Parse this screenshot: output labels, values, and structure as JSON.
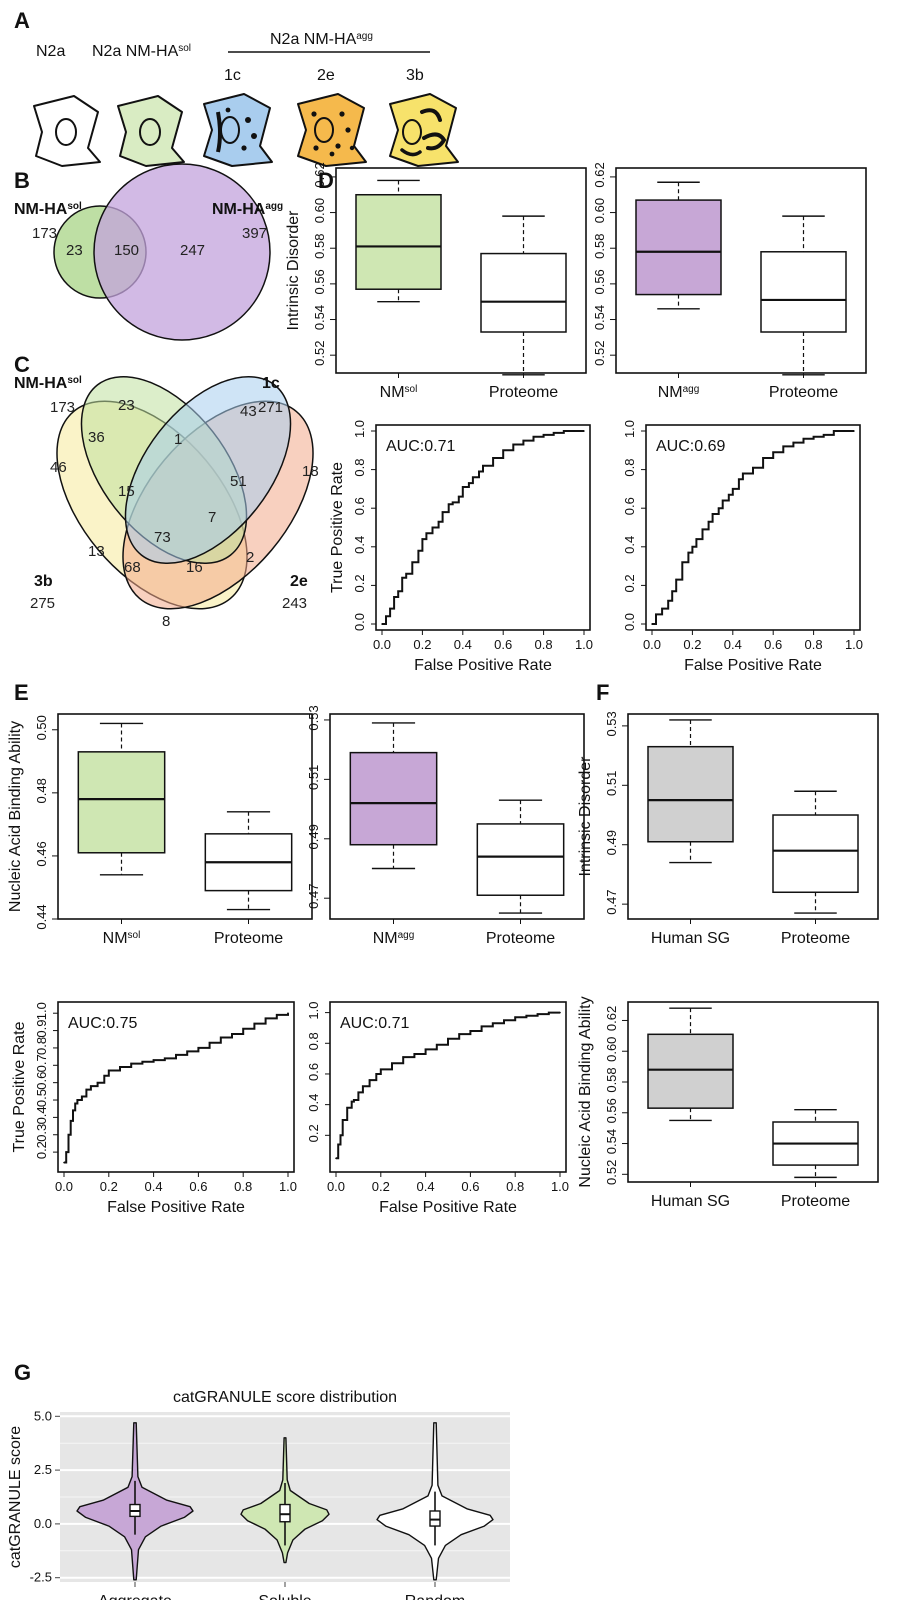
{
  "panels": {
    "A": "A",
    "B": "B",
    "C": "C",
    "D": "D",
    "E": "E",
    "F": "F",
    "G": "G"
  },
  "panelA": {
    "labels": {
      "n2a": "N2a",
      "sol_base": "N2a NM-HA",
      "sol_sup": "sol",
      "agg_base": "N2a NM-HA",
      "agg_sup": "agg"
    },
    "clones": [
      "1c",
      "2e",
      "3b"
    ],
    "cells": [
      {
        "name": "N2a",
        "fill": "#ffffff"
      },
      {
        "name": "NM-HA sol",
        "fill": "#d9ecc3"
      },
      {
        "name": "1c",
        "fill": "#a9cdee"
      },
      {
        "name": "2e",
        "fill": "#f5b94c"
      },
      {
        "name": "3b",
        "fill": "#f7e26b"
      }
    ]
  },
  "panelB": {
    "left": {
      "name": "NM-HA",
      "sup": "sol",
      "total": "173"
    },
    "right": {
      "name": "NM-HA",
      "sup": "agg",
      "total": "397"
    },
    "regions": {
      "only_left": "23",
      "both": "150",
      "only_right": "247"
    },
    "colors": {
      "left": "#b7dc9a",
      "right": "#c3a3dc"
    }
  },
  "panelC": {
    "sets": [
      {
        "name": "NM-HA",
        "sup": "sol",
        "total": "173",
        "color": "#bfe09f"
      },
      {
        "name": "1c",
        "sup": "",
        "total": "271",
        "color": "#a7cdee"
      },
      {
        "name": "3b",
        "sup": "",
        "total": "275",
        "color": "#f6e99a"
      },
      {
        "name": "2e",
        "sup": "",
        "total": "243",
        "color": "#f3a98a"
      }
    ],
    "regions": [
      "23",
      "43",
      "46",
      "18",
      "36",
      "1",
      "51",
      "15",
      "7",
      "73",
      "13",
      "2",
      "68",
      "16",
      "8"
    ]
  },
  "colors": {
    "sol": "#cfe7b3",
    "agg": "#c7a7d6",
    "sg": "#d0d0d0",
    "white": "#ffffff"
  },
  "chart_data": [
    {
      "id": "D-box-sol",
      "type": "box",
      "ylabel": "Intrinsic Disorder",
      "ylim": [
        0.51,
        0.625
      ],
      "yticks": [
        "0.52",
        "0.54",
        "0.56",
        "0.58",
        "0.60",
        "0.62"
      ],
      "categories": [
        "NM",
        "Proteome"
      ],
      "category_sup": [
        "sol",
        ""
      ],
      "boxes": [
        {
          "min": 0.55,
          "q1": 0.557,
          "median": 0.581,
          "q3": 0.61,
          "max": 0.618
        },
        {
          "min": 0.509,
          "q1": 0.533,
          "median": 0.55,
          "q3": 0.577,
          "max": 0.598
        }
      ]
    },
    {
      "id": "D-box-agg",
      "type": "box",
      "ylabel": "",
      "ylim": [
        0.51,
        0.625
      ],
      "yticks": [
        "0.52",
        "0.54",
        "0.56",
        "0.58",
        "0.60",
        "0.62"
      ],
      "categories": [
        "NM",
        "Proteome"
      ],
      "category_sup": [
        "agg",
        ""
      ],
      "boxes": [
        {
          "min": 0.546,
          "q1": 0.554,
          "median": 0.578,
          "q3": 0.607,
          "max": 0.617
        },
        {
          "min": 0.509,
          "q1": 0.533,
          "median": 0.551,
          "q3": 0.578,
          "max": 0.598
        }
      ]
    },
    {
      "id": "D-roc-sol",
      "type": "line",
      "annotation": "AUC:0.71",
      "xlabel": "False Positive Rate",
      "ylabel": "True Positive Rate",
      "xlim": [
        0,
        1
      ],
      "ylim": [
        0,
        1
      ],
      "xticks": [
        "0.0",
        "0.2",
        "0.4",
        "0.6",
        "0.8",
        "1.0"
      ],
      "yticks": [
        "0.0",
        "0.2",
        "0.4",
        "0.6",
        "0.8",
        "1.0"
      ],
      "x": [
        0,
        0.02,
        0.04,
        0.06,
        0.08,
        0.1,
        0.12,
        0.15,
        0.18,
        0.2,
        0.22,
        0.25,
        0.28,
        0.3,
        0.33,
        0.35,
        0.38,
        0.4,
        0.43,
        0.45,
        0.48,
        0.5,
        0.55,
        0.6,
        0.65,
        0.7,
        0.75,
        0.8,
        0.85,
        0.9,
        0.95,
        1.0
      ],
      "y": [
        0,
        0.04,
        0.08,
        0.14,
        0.17,
        0.24,
        0.26,
        0.32,
        0.38,
        0.44,
        0.47,
        0.5,
        0.53,
        0.58,
        0.62,
        0.63,
        0.66,
        0.71,
        0.73,
        0.76,
        0.79,
        0.82,
        0.86,
        0.9,
        0.93,
        0.95,
        0.97,
        0.98,
        0.99,
        1.0,
        1.0,
        1.0
      ]
    },
    {
      "id": "D-roc-agg",
      "type": "line",
      "annotation": "AUC:0.69",
      "xlabel": "False Positive Rate",
      "ylabel": "",
      "xlim": [
        0,
        1
      ],
      "ylim": [
        0,
        1
      ],
      "xticks": [
        "0.0",
        "0.2",
        "0.4",
        "0.6",
        "0.8",
        "1.0"
      ],
      "yticks": [
        "0.0",
        "0.2",
        "0.4",
        "0.6",
        "0.8",
        "1.0"
      ],
      "x": [
        0,
        0.02,
        0.05,
        0.08,
        0.1,
        0.12,
        0.15,
        0.18,
        0.2,
        0.22,
        0.25,
        0.28,
        0.3,
        0.33,
        0.35,
        0.38,
        0.4,
        0.43,
        0.45,
        0.5,
        0.55,
        0.6,
        0.65,
        0.7,
        0.75,
        0.8,
        0.85,
        0.9,
        0.95,
        1.0
      ],
      "y": [
        0,
        0.05,
        0.08,
        0.12,
        0.17,
        0.23,
        0.32,
        0.37,
        0.4,
        0.44,
        0.49,
        0.53,
        0.57,
        0.6,
        0.64,
        0.67,
        0.7,
        0.75,
        0.78,
        0.81,
        0.86,
        0.89,
        0.92,
        0.94,
        0.96,
        0.97,
        0.98,
        1.0,
        1.0,
        1.0
      ]
    },
    {
      "id": "E-box-sol",
      "type": "box",
      "ylabel": "Nucleic Acid Binding Ability",
      "ylim": [
        0.44,
        0.505
      ],
      "yticks": [
        "0.44",
        "0.46",
        "0.48",
        "0.50"
      ],
      "categories": [
        "NM",
        "Proteome"
      ],
      "category_sup": [
        "sol",
        ""
      ],
      "boxes": [
        {
          "min": 0.454,
          "q1": 0.461,
          "median": 0.478,
          "q3": 0.493,
          "max": 0.502
        },
        {
          "min": 0.443,
          "q1": 0.449,
          "median": 0.458,
          "q3": 0.467,
          "max": 0.474
        }
      ]
    },
    {
      "id": "E-box-agg",
      "type": "box",
      "ylabel": "",
      "ylim": [
        0.463,
        0.532
      ],
      "yticks": [
        "0.47",
        "0.49",
        "0.51",
        "0.53"
      ],
      "categories": [
        "NM",
        "Proteome"
      ],
      "category_sup": [
        "agg",
        ""
      ],
      "boxes": [
        {
          "min": 0.48,
          "q1": 0.488,
          "median": 0.502,
          "q3": 0.519,
          "max": 0.529
        },
        {
          "min": 0.465,
          "q1": 0.471,
          "median": 0.484,
          "q3": 0.495,
          "max": 0.503
        }
      ]
    },
    {
      "id": "E-roc-sol",
      "type": "line",
      "annotation": "AUC:0.75",
      "xlabel": "False Positive Rate",
      "ylabel": "True Positive Rate",
      "xlim": [
        0,
        1
      ],
      "ylim": [
        0.12,
        1.03
      ],
      "xticks": [
        "0.0",
        "0.2",
        "0.4",
        "0.6",
        "0.8",
        "1.0"
      ],
      "yticks": [
        "0.2",
        "0.3",
        "0.4",
        "0.5",
        "0.6",
        "0.7",
        "0.8",
        "0.9",
        "1.0"
      ],
      "x": [
        0,
        0.01,
        0.02,
        0.03,
        0.04,
        0.05,
        0.06,
        0.08,
        0.1,
        0.12,
        0.15,
        0.18,
        0.2,
        0.25,
        0.3,
        0.35,
        0.4,
        0.45,
        0.5,
        0.55,
        0.6,
        0.65,
        0.7,
        0.75,
        0.8,
        0.85,
        0.9,
        0.95,
        1.0
      ],
      "y": [
        0.14,
        0.2,
        0.3,
        0.38,
        0.44,
        0.48,
        0.5,
        0.52,
        0.56,
        0.58,
        0.6,
        0.64,
        0.67,
        0.69,
        0.71,
        0.72,
        0.73,
        0.74,
        0.76,
        0.78,
        0.8,
        0.83,
        0.86,
        0.88,
        0.91,
        0.94,
        0.97,
        0.99,
        1.0
      ]
    },
    {
      "id": "E-roc-agg",
      "type": "line",
      "annotation": "AUC:0.71",
      "xlabel": "False Positive Rate",
      "ylabel": "",
      "xlim": [
        0,
        1
      ],
      "ylim": [
        0.0,
        1.03
      ],
      "xticks": [
        "0.0",
        "0.2",
        "0.4",
        "0.6",
        "0.8",
        "1.0"
      ],
      "yticks": [
        "0.2",
        "0.4",
        "0.6",
        "0.8",
        "1.0"
      ],
      "x": [
        0,
        0.01,
        0.02,
        0.03,
        0.05,
        0.07,
        0.08,
        0.1,
        0.12,
        0.15,
        0.18,
        0.2,
        0.25,
        0.3,
        0.35,
        0.4,
        0.45,
        0.5,
        0.55,
        0.6,
        0.65,
        0.7,
        0.75,
        0.8,
        0.85,
        0.9,
        0.95,
        1.0
      ],
      "y": [
        0.05,
        0.14,
        0.2,
        0.3,
        0.38,
        0.42,
        0.43,
        0.48,
        0.52,
        0.56,
        0.6,
        0.63,
        0.67,
        0.71,
        0.73,
        0.76,
        0.79,
        0.83,
        0.86,
        0.88,
        0.91,
        0.93,
        0.95,
        0.97,
        0.98,
        0.99,
        1.0,
        1.0
      ]
    },
    {
      "id": "F-box-id",
      "type": "box",
      "ylabel": "Intrinsic Disorder",
      "ylim": [
        0.465,
        0.534
      ],
      "yticks": [
        "0.47",
        "0.49",
        "0.51",
        "0.53"
      ],
      "categories": [
        "Human SG",
        "Proteome"
      ],
      "category_sup": [
        "",
        ""
      ],
      "boxes": [
        {
          "min": 0.484,
          "q1": 0.491,
          "median": 0.505,
          "q3": 0.523,
          "max": 0.532
        },
        {
          "min": 0.467,
          "q1": 0.474,
          "median": 0.488,
          "q3": 0.5,
          "max": 0.508
        }
      ]
    },
    {
      "id": "F-box-nab",
      "type": "box",
      "ylabel": "Nucleic Acid Binding Ability",
      "ylim": [
        0.515,
        0.632
      ],
      "yticks": [
        "0.52",
        "0.54",
        "0.56",
        "0.58",
        "0.60",
        "0.62"
      ],
      "categories": [
        "Human SG",
        "Proteome"
      ],
      "category_sup": [
        "",
        ""
      ],
      "boxes": [
        {
          "min": 0.555,
          "q1": 0.563,
          "median": 0.588,
          "q3": 0.611,
          "max": 0.628
        },
        {
          "min": 0.518,
          "q1": 0.526,
          "median": 0.54,
          "q3": 0.554,
          "max": 0.562
        }
      ]
    },
    {
      "id": "G-violin",
      "type": "violin",
      "title": "catGRANULE score distribution",
      "ylabel": "catGRANULE score",
      "ylim": [
        -2.7,
        5.2
      ],
      "yticks": [
        "-2.5",
        "0.0",
        "2.5",
        "5.0"
      ],
      "categories": [
        "Aggregate",
        "Soluble",
        "Random"
      ],
      "series": [
        {
          "name": "Aggregate",
          "min": -2.6,
          "max": 4.7,
          "q1": 0.35,
          "median": 0.6,
          "q3": 0.9,
          "whisk_lo": -0.5,
          "whisk_hi": 2.0
        },
        {
          "name": "Soluble",
          "min": -1.8,
          "max": 4.0,
          "q1": 0.1,
          "median": 0.45,
          "q3": 0.9,
          "whisk_lo": -1.0,
          "whisk_hi": 1.9
        },
        {
          "name": "Random",
          "min": -2.6,
          "max": 4.7,
          "q1": -0.1,
          "median": 0.2,
          "q3": 0.6,
          "whisk_lo": -1.0,
          "whisk_hi": 1.5
        }
      ]
    }
  ]
}
